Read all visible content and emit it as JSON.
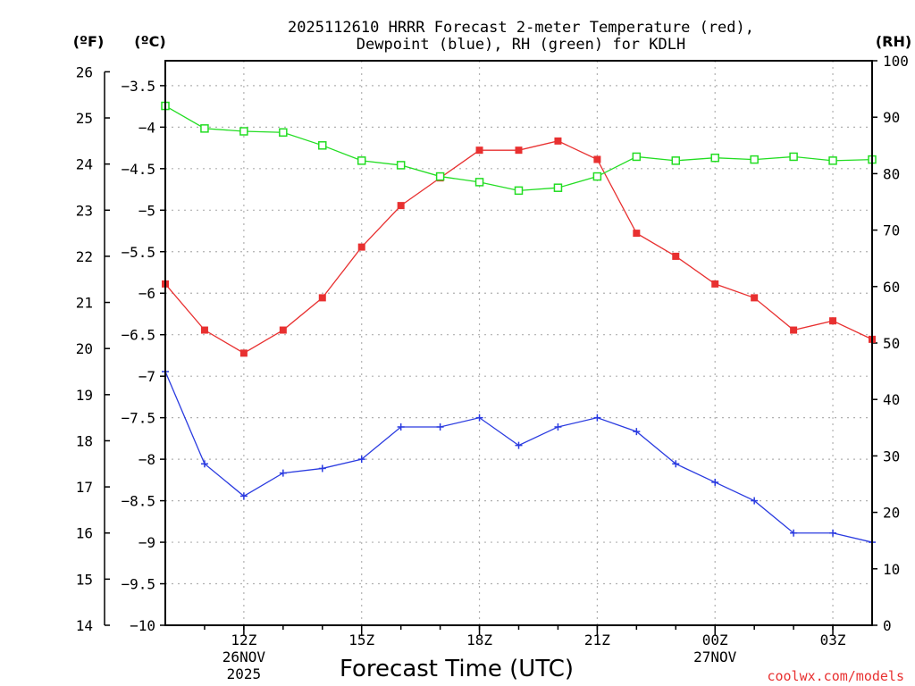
{
  "chart_data": {
    "type": "line",
    "title_line1": "2025112610 HRRR Forecast 2-meter Temperature (red),",
    "title_line2": "Dewpoint (blue), RH (green) for KDLH",
    "xlabel": "Forecast Time (UTC)",
    "credit": "coolwx.com/models",
    "unit_label_f": "(ºF)",
    "unit_label_c": "(ºC)",
    "unit_label_rh": "(RH)",
    "x_hours": [
      10,
      11,
      12,
      13,
      14,
      15,
      16,
      17,
      18,
      19,
      20,
      21,
      22,
      23,
      24,
      25,
      26,
      27,
      28
    ],
    "x_ticks": [
      {
        "hour": 12,
        "label": "12Z",
        "date": "26NOV",
        "year": "2025"
      },
      {
        "hour": 15,
        "label": "15Z",
        "date": "",
        "year": ""
      },
      {
        "hour": 18,
        "label": "18Z",
        "date": "",
        "year": ""
      },
      {
        "hour": 21,
        "label": "21Z",
        "date": "",
        "year": ""
      },
      {
        "hour": 24,
        "label": "00Z",
        "date": "27NOV",
        "year": ""
      },
      {
        "hour": 27,
        "label": "03Z",
        "date": "",
        "year": ""
      }
    ],
    "xlim": [
      10,
      28
    ],
    "celsius_axis": {
      "ylim": [
        -10,
        -3.2
      ],
      "ticks": [
        "-10",
        "-9.5",
        "-9",
        "-8.5",
        "-8",
        "-7.5",
        "-7",
        "-6.5",
        "-6",
        "-5.5",
        "-5",
        "-4.5",
        "-4",
        "-3.5"
      ]
    },
    "fahrenheit_axis": {
      "ticks": [
        "14",
        "15",
        "16",
        "17",
        "18",
        "19",
        "20",
        "21",
        "22",
        "23",
        "24",
        "25",
        "26"
      ]
    },
    "rh_axis": {
      "ylim": [
        0,
        100
      ],
      "ticks": [
        "0",
        "10",
        "20",
        "30",
        "40",
        "50",
        "60",
        "70",
        "80",
        "90",
        "100"
      ]
    },
    "series": [
      {
        "name": "Temperature",
        "unit": "F",
        "color": "#e83030",
        "values": [
          21.4,
          20.4,
          19.9,
          20.4,
          21.1,
          22.2,
          23.1,
          23.7,
          24.3,
          24.3,
          24.5,
          24.1,
          22.5,
          22.0,
          21.4,
          21.1,
          20.4,
          20.6,
          20.2
        ]
      },
      {
        "name": "Dewpoint",
        "unit": "F",
        "color": "#2a3be0",
        "values": [
          19.5,
          17.5,
          16.8,
          17.3,
          17.4,
          17.6,
          18.3,
          18.3,
          18.5,
          17.9,
          18.3,
          18.5,
          18.2,
          17.5,
          17.1,
          16.7,
          16.0,
          16.0,
          15.8
        ]
      },
      {
        "name": "RH",
        "unit": "%",
        "color": "#22dd22",
        "values": [
          92,
          88,
          87.5,
          87.3,
          85,
          82.3,
          81.5,
          79.5,
          78.5,
          77,
          77.5,
          79.5,
          83,
          82.3,
          82.8,
          82.5,
          83,
          82.3,
          82.5
        ]
      }
    ]
  }
}
